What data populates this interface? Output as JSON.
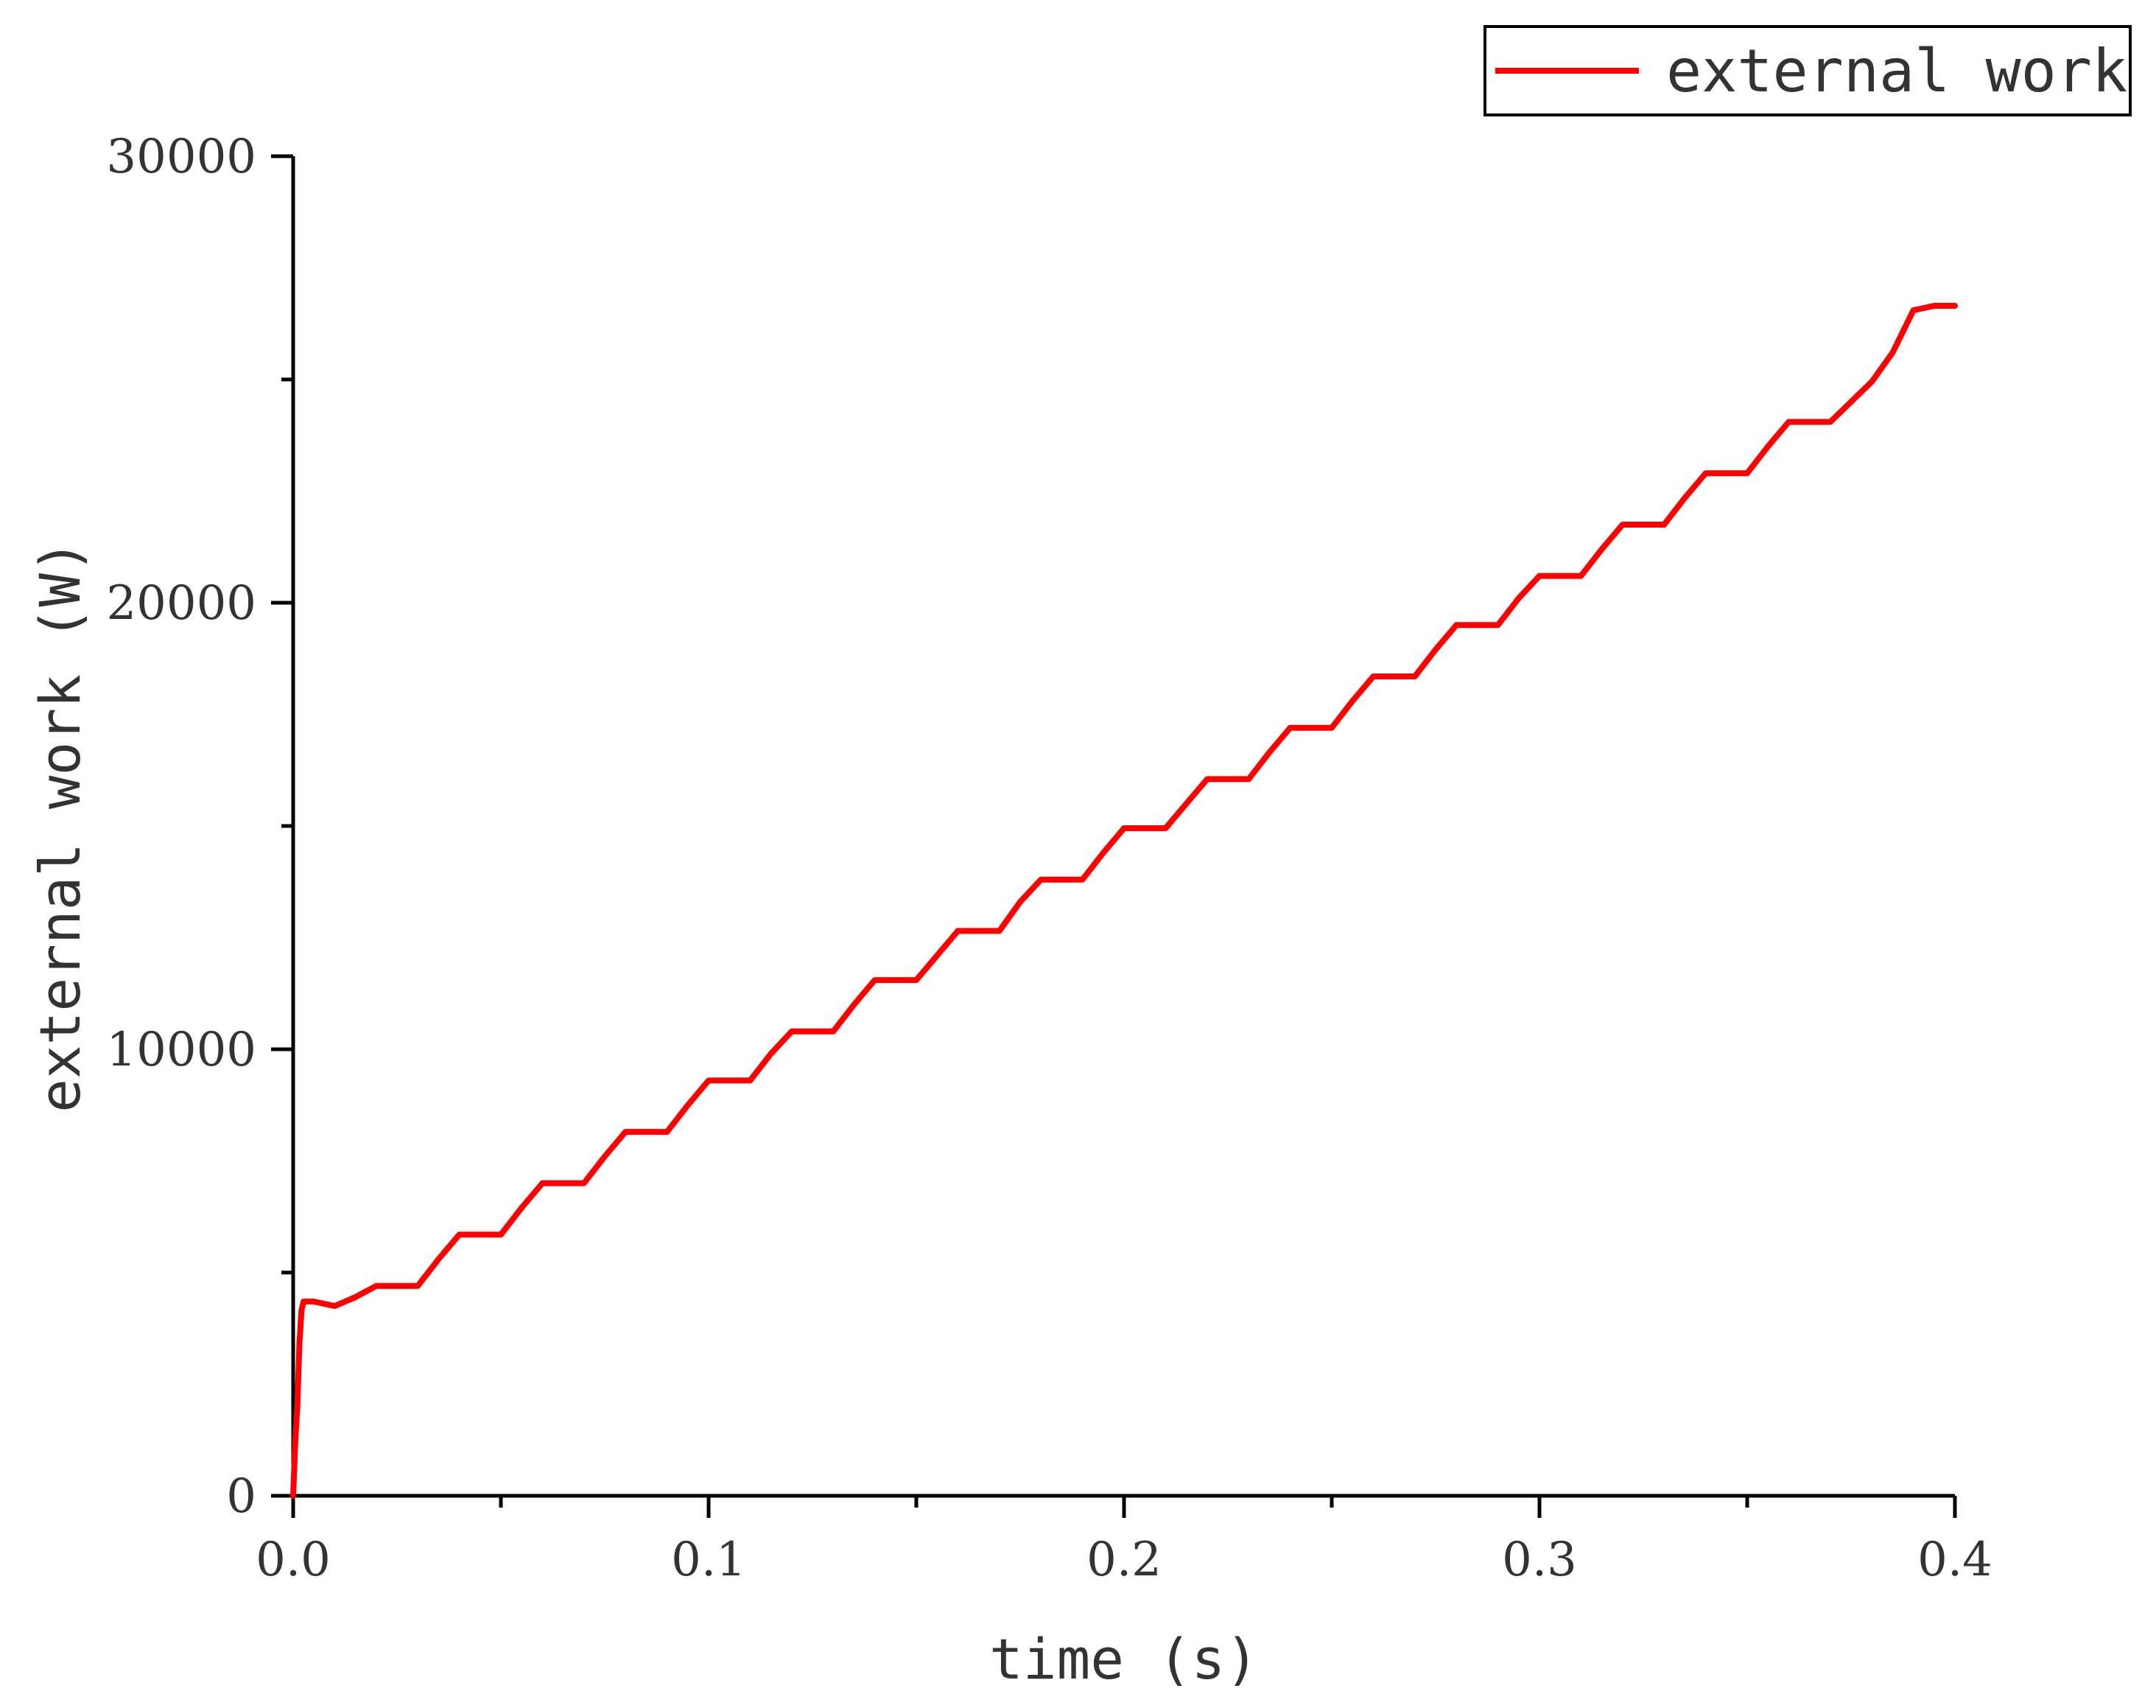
{
  "chart_data": {
    "type": "line",
    "xlabel": "time (s)",
    "ylabel": "external work (W)",
    "xlim": [
      0,
      0.4
    ],
    "ylim": [
      0,
      30000
    ],
    "x_ticks": [
      0.0,
      0.1,
      0.2,
      0.3,
      0.4
    ],
    "x_tick_labels": [
      "0.0",
      "0.1",
      "0.2",
      "0.3",
      "0.4"
    ],
    "y_ticks": [
      0,
      10000,
      20000,
      30000
    ],
    "y_tick_labels": [
      "0",
      "10000",
      "20000",
      "30000"
    ],
    "grid": false,
    "legend": {
      "position": "top-right",
      "entries": [
        "external work"
      ]
    },
    "series": [
      {
        "name": "external work",
        "color": "#ff0000",
        "x": [
          0,
          0.0005,
          0.001,
          0.0015,
          0.002,
          0.0025,
          0.005,
          0.01,
          0.015,
          0.02,
          0.03,
          0.035,
          0.04,
          0.05,
          0.055,
          0.06,
          0.07,
          0.075,
          0.08,
          0.09,
          0.095,
          0.1,
          0.11,
          0.115,
          0.12,
          0.13,
          0.135,
          0.14,
          0.15,
          0.155,
          0.16,
          0.17,
          0.175,
          0.18,
          0.19,
          0.195,
          0.2,
          0.21,
          0.215,
          0.22,
          0.23,
          0.235,
          0.24,
          0.25,
          0.255,
          0.26,
          0.27,
          0.275,
          0.28,
          0.29,
          0.295,
          0.3,
          0.31,
          0.315,
          0.32,
          0.33,
          0.335,
          0.34,
          0.35,
          0.355,
          0.36,
          0.37,
          0.38,
          0.385,
          0.39,
          0.395,
          0.4
        ],
        "y": [
          0,
          1200,
          2000,
          3400,
          4150,
          4350,
          4350,
          4250,
          4450,
          4700,
          4700,
          5300,
          5850,
          5850,
          6450,
          7000,
          7000,
          7600,
          8150,
          8150,
          8750,
          9300,
          9300,
          9900,
          10400,
          10400,
          11000,
          11550,
          11550,
          12100,
          12650,
          12650,
          13300,
          13800,
          13800,
          14400,
          14950,
          14950,
          15500,
          16050,
          16050,
          16650,
          17200,
          17200,
          17800,
          18350,
          18350,
          18950,
          19500,
          19500,
          20100,
          20600,
          20600,
          21200,
          21750,
          21750,
          22350,
          22900,
          22900,
          23500,
          24050,
          24050,
          24950,
          25600,
          26550,
          26650,
          26650
        ]
      }
    ]
  }
}
